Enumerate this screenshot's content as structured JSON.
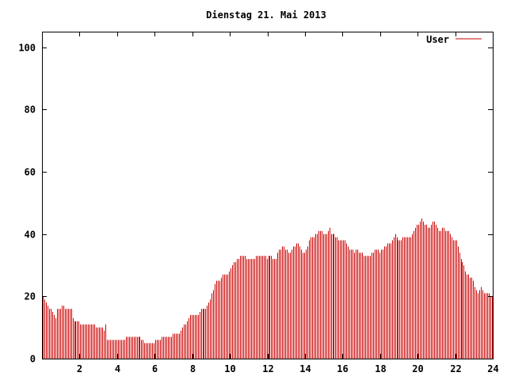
{
  "chart_data": {
    "type": "bar",
    "title": "Dienstag 21. Mai 2013",
    "xlabel": "",
    "ylabel": "",
    "xlim": [
      0,
      24
    ],
    "ylim": [
      0,
      105
    ],
    "x_ticks": [
      2,
      4,
      6,
      8,
      10,
      12,
      14,
      16,
      18,
      20,
      22,
      24
    ],
    "y_ticks": [
      0,
      20,
      40,
      60,
      80,
      100
    ],
    "grid": false,
    "legend": "top-right",
    "series": [
      {
        "name": "User",
        "color": "#cc0000",
        "points_per_hour": 12,
        "values": [
          20,
          19,
          18,
          17,
          16,
          16,
          15,
          14,
          13,
          16,
          16,
          16,
          17,
          17,
          16,
          16,
          16,
          16,
          16,
          13,
          12,
          12,
          12,
          12,
          11,
          11,
          11,
          11,
          11,
          11,
          11,
          11,
          11,
          11,
          10,
          10,
          10,
          10,
          10,
          9,
          11,
          6,
          6,
          6,
          6,
          6,
          6,
          6,
          6,
          6,
          6,
          6,
          6,
          7,
          7,
          7,
          7,
          7,
          7,
          7,
          7,
          7,
          7,
          6,
          6,
          5,
          5,
          5,
          5,
          5,
          5,
          5,
          6,
          6,
          6,
          6,
          7,
          7,
          7,
          7,
          7,
          7,
          7,
          8,
          8,
          8,
          8,
          8,
          9,
          10,
          11,
          11,
          12,
          13,
          14,
          14,
          14,
          14,
          14,
          14,
          15,
          16,
          16,
          16,
          16,
          17,
          18,
          19,
          21,
          22,
          24,
          25,
          25,
          25,
          26,
          27,
          27,
          27,
          27,
          28,
          29,
          30,
          31,
          31,
          32,
          32,
          33,
          33,
          33,
          33,
          32,
          32,
          32,
          32,
          32,
          32,
          33,
          33,
          33,
          33,
          33,
          33,
          33,
          32,
          33,
          33,
          33,
          32,
          32,
          32,
          34,
          35,
          35,
          36,
          36,
          35,
          35,
          34,
          34,
          35,
          36,
          36,
          37,
          37,
          36,
          35,
          34,
          34,
          35,
          36,
          38,
          39,
          39,
          39,
          40,
          40,
          41,
          41,
          41,
          40,
          40,
          40,
          41,
          42,
          40,
          40,
          40,
          39,
          39,
          38,
          38,
          38,
          38,
          38,
          37,
          36,
          35,
          35,
          35,
          34,
          35,
          35,
          34,
          34,
          34,
          33,
          33,
          33,
          33,
          33,
          34,
          34,
          35,
          35,
          35,
          34,
          35,
          35,
          36,
          36,
          37,
          37,
          37,
          38,
          39,
          40,
          39,
          38,
          38,
          38,
          39,
          39,
          39,
          39,
          39,
          39,
          40,
          41,
          42,
          43,
          43,
          44,
          45,
          44,
          43,
          43,
          42,
          42,
          43,
          44,
          44,
          43,
          42,
          41,
          41,
          42,
          42,
          41,
          41,
          41,
          40,
          39,
          38,
          38,
          38,
          36,
          34,
          32,
          31,
          30,
          28,
          27,
          27,
          26,
          26,
          25,
          23,
          22,
          21,
          22,
          23,
          22,
          21,
          21,
          21,
          21,
          20,
          20
        ]
      }
    ]
  }
}
